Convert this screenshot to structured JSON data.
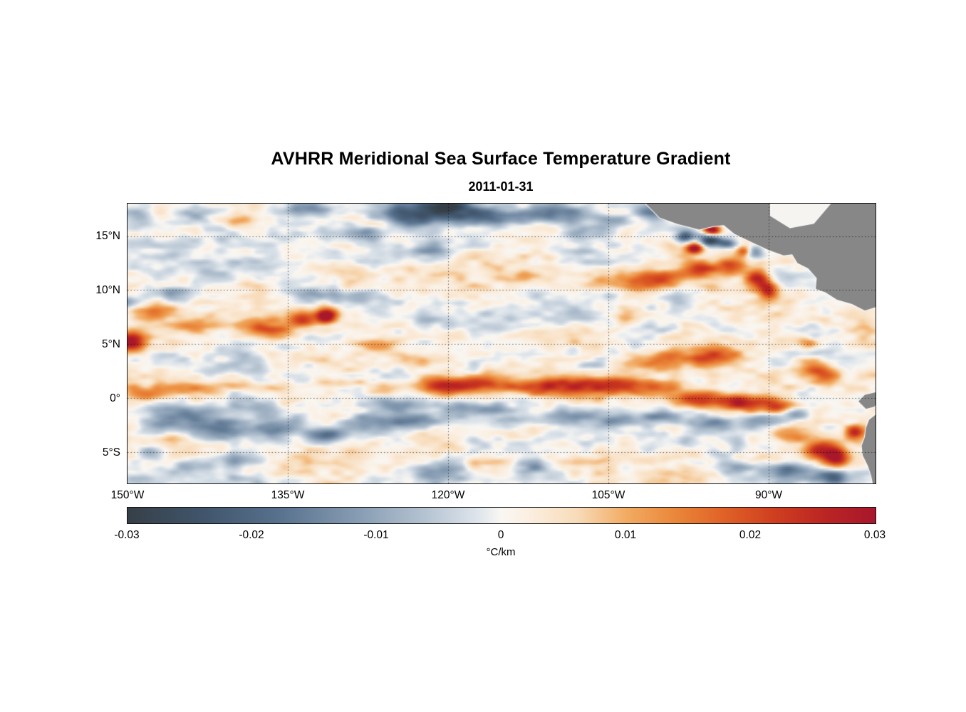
{
  "figure": {
    "title": "AVHRR Meridional Sea Surface Temperature Gradient",
    "subtitle": "2011-01-31"
  },
  "chart_data": {
    "type": "heatmap",
    "title": "AVHRR Meridional Sea Surface Temperature Gradient",
    "subtitle": "2011-01-31",
    "x_axis": {
      "tick_labels": [
        "150°W",
        "135°W",
        "120°W",
        "105°W",
        "90°W"
      ],
      "tick_lon_west": [
        150,
        135,
        120,
        105,
        90
      ],
      "range_lon_west": [
        150,
        80
      ]
    },
    "y_axis": {
      "tick_labels": [
        "15°N",
        "10°N",
        "5°N",
        "0°",
        "5°S"
      ],
      "tick_lat": [
        15,
        10,
        5,
        0,
        -5
      ],
      "range_lat": [
        -7.9,
        18
      ]
    },
    "grid": {
      "style": "dotted",
      "color": "rgba(0,0,0,0.6)",
      "lat_lines": [
        15,
        10,
        5,
        0,
        -5
      ],
      "lon_west_lines": [
        135,
        120,
        105,
        90
      ]
    },
    "colorbar": {
      "min": -0.03,
      "max": 0.03,
      "tick_values": [
        -0.03,
        -0.02,
        -0.01,
        0,
        0.01,
        0.02,
        0.03
      ],
      "tick_labels": [
        "-0.03",
        "-0.02",
        "-0.01",
        "0",
        "0.01",
        "0.02",
        "0.03"
      ],
      "units": "°C/km",
      "stops": [
        {
          "v": -0.03,
          "c": "#363f47"
        },
        {
          "v": -0.024,
          "c": "#40556b"
        },
        {
          "v": -0.018,
          "c": "#57708c"
        },
        {
          "v": -0.012,
          "c": "#8399b0"
        },
        {
          "v": -0.006,
          "c": "#b6c4d2"
        },
        {
          "v": -0.002,
          "c": "#dde4eb"
        },
        {
          "v": 0.0,
          "c": "#f9f7f3"
        },
        {
          "v": 0.002,
          "c": "#fbf0e3"
        },
        {
          "v": 0.006,
          "c": "#f8dcba"
        },
        {
          "v": 0.01,
          "c": "#f2ab63"
        },
        {
          "v": 0.014,
          "c": "#ea8639"
        },
        {
          "v": 0.018,
          "c": "#df6026"
        },
        {
          "v": 0.022,
          "c": "#cf3d20"
        },
        {
          "v": 0.026,
          "c": "#ba2523"
        },
        {
          "v": 0.03,
          "c": "#a8172c"
        }
      ]
    },
    "land": {
      "fill_color": "#878787",
      "coastline_color": "#ffffff",
      "masked_sea_color": "#f6f4f0",
      "polygons": [
        [
          [
            101.8,
            18.3
          ],
          [
            100.2,
            16.7
          ],
          [
            98.5,
            16.1
          ],
          [
            96.5,
            15.6
          ],
          [
            95.2,
            15.9
          ],
          [
            94.2,
            16.0
          ],
          [
            93.2,
            15.2
          ],
          [
            91.5,
            14.4
          ],
          [
            90.0,
            13.7
          ],
          [
            88.6,
            13.2
          ],
          [
            87.8,
            13.3
          ],
          [
            87.3,
            12.5
          ],
          [
            86.3,
            12.0
          ],
          [
            85.5,
            11.1
          ],
          [
            85.6,
            10.1
          ],
          [
            84.7,
            9.8
          ],
          [
            83.6,
            9.1
          ],
          [
            82.2,
            8.7
          ],
          [
            81.0,
            8.1
          ],
          [
            79.7,
            8.5
          ],
          [
            79.7,
            18.3
          ]
        ],
        [
          [
            79.7,
            -1.3
          ],
          [
            80.6,
            -2.0
          ],
          [
            80.9,
            -2.8
          ],
          [
            81.0,
            -3.6
          ],
          [
            81.3,
            -4.4
          ],
          [
            81.2,
            -5.3
          ],
          [
            80.7,
            -6.3
          ],
          [
            80.4,
            -7.2
          ],
          [
            80.2,
            -8.2
          ],
          [
            79.7,
            -8.2
          ]
        ],
        [
          [
            79.7,
            0.6
          ],
          [
            81.0,
            0.3
          ],
          [
            81.6,
            -0.3
          ],
          [
            80.9,
            -1.0
          ],
          [
            80.1,
            -0.8
          ],
          [
            79.7,
            -0.2
          ]
        ]
      ],
      "masked_polygons": [
        [
          [
            89.8,
            18.3
          ],
          [
            84.0,
            18.3
          ],
          [
            85.8,
            16.2
          ],
          [
            88.0,
            15.8
          ],
          [
            89.8,
            16.9
          ]
        ]
      ]
    },
    "field": {
      "seed": 7,
      "bias": 0.0012,
      "noise_amp_large": 0.0085,
      "noise_amp_mid": 0.004,
      "noise_amp_fine": 0.003,
      "clip": 0.0305,
      "features": [
        [
          149.6,
          5.1,
          1.4,
          0.9,
          0.03
        ],
        [
          148.0,
          7.9,
          2.2,
          0.8,
          0.016
        ],
        [
          144.5,
          6.6,
          2.6,
          0.7,
          0.01
        ],
        [
          137.0,
          6.4,
          2.6,
          0.9,
          0.018
        ],
        [
          133.6,
          7.3,
          1.4,
          0.8,
          0.02
        ],
        [
          131.4,
          7.6,
          0.9,
          0.7,
          0.03
        ],
        [
          127.0,
          4.9,
          2.2,
          0.6,
          0.011
        ],
        [
          122.5,
          3.6,
          3.2,
          0.7,
          0.009
        ],
        [
          120.4,
          1.1,
          2.4,
          0.9,
          0.026
        ],
        [
          116.0,
          1.3,
          2.6,
          0.8,
          0.016
        ],
        [
          112.0,
          0.9,
          2.6,
          0.8,
          0.019
        ],
        [
          108.0,
          1.3,
          3.0,
          0.9,
          0.022
        ],
        [
          104.0,
          1.1,
          2.6,
          0.9,
          0.017
        ],
        [
          100.0,
          0.9,
          2.2,
          0.8,
          0.015
        ],
        [
          96.0,
          -0.2,
          2.4,
          0.8,
          0.024
        ],
        [
          92.4,
          -0.4,
          2.0,
          0.8,
          0.026
        ],
        [
          89.0,
          -0.7,
          1.8,
          0.7,
          0.018
        ],
        [
          101.0,
          3.3,
          3.0,
          1.0,
          0.013
        ],
        [
          97.0,
          3.9,
          2.6,
          1.0,
          0.012
        ],
        [
          94.0,
          4.1,
          2.2,
          0.9,
          0.011
        ],
        [
          103.0,
          10.4,
          2.4,
          0.9,
          0.015
        ],
        [
          99.6,
          11.1,
          2.0,
          0.8,
          0.019
        ],
        [
          96.6,
          11.9,
          1.6,
          0.8,
          0.021
        ],
        [
          93.6,
          12.1,
          1.6,
          0.8,
          0.017
        ],
        [
          91.0,
          11.1,
          1.1,
          0.9,
          0.026
        ],
        [
          90.0,
          9.9,
          0.9,
          0.9,
          0.021
        ],
        [
          95.3,
          15.6,
          0.8,
          0.45,
          0.032
        ],
        [
          96.9,
          13.9,
          0.9,
          0.55,
          0.034
        ],
        [
          92.3,
          13.6,
          0.7,
          0.5,
          0.019
        ],
        [
          85.0,
          -4.8,
          1.6,
          1.0,
          0.027
        ],
        [
          88.0,
          -3.4,
          1.6,
          0.8,
          0.015
        ],
        [
          83.6,
          -5.6,
          1.1,
          0.9,
          0.03
        ],
        [
          86.0,
          2.9,
          1.6,
          0.9,
          0.013
        ],
        [
          84.6,
          2.1,
          1.3,
          0.9,
          0.015
        ],
        [
          86.4,
          5.0,
          1.0,
          0.7,
          0.012
        ],
        [
          82.0,
          -3.2,
          0.9,
          0.7,
          0.02
        ],
        [
          140.0,
          16.4,
          3.2,
          0.7,
          0.007
        ],
        [
          126.6,
          16.1,
          1.7,
          0.55,
          0.009
        ],
        [
          148.2,
          0.4,
          2.2,
          0.7,
          0.013
        ],
        [
          144.0,
          0.9,
          2.6,
          0.7,
          0.011
        ],
        [
          140.0,
          1.3,
          2.2,
          0.6,
          0.009
        ],
        [
          135.8,
          0.9,
          2.0,
          0.6,
          0.008
        ],
        [
          131.0,
          1.4,
          2.6,
          0.6,
          0.011
        ],
        [
          126.0,
          1.1,
          2.2,
          0.6,
          0.011
        ],
        [
          150.0,
          8.9,
          1.6,
          0.6,
          -0.015
        ],
        [
          146.8,
          9.7,
          1.6,
          0.6,
          -0.011
        ],
        [
          143.0,
          11.6,
          2.6,
          0.9,
          -0.011
        ],
        [
          138.0,
          12.6,
          2.6,
          0.9,
          -0.009
        ],
        [
          133.0,
          9.6,
          2.2,
          0.7,
          -0.011
        ],
        [
          128.4,
          9.4,
          2.0,
          0.6,
          -0.013
        ],
        [
          124.0,
          16.9,
          3.2,
          1.1,
          -0.022
        ],
        [
          120.0,
          17.6,
          2.6,
          1.1,
          -0.024
        ],
        [
          116.4,
          16.6,
          2.2,
          0.9,
          -0.016
        ],
        [
          127.6,
          15.3,
          1.6,
          0.7,
          -0.014
        ],
        [
          133.2,
          17.6,
          2.2,
          0.7,
          -0.012
        ],
        [
          109.0,
          17.1,
          2.6,
          0.9,
          -0.018
        ],
        [
          113.0,
          16.9,
          2.0,
          0.8,
          -0.012
        ],
        [
          104.4,
          16.3,
          1.6,
          0.7,
          -0.011
        ],
        [
          100.6,
          17.2,
          1.6,
          0.7,
          -0.014
        ],
        [
          95.6,
          14.6,
          1.1,
          0.55,
          -0.028
        ],
        [
          97.9,
          14.9,
          0.9,
          0.55,
          -0.022
        ],
        [
          93.9,
          14.3,
          0.9,
          0.45,
          -0.018
        ],
        [
          91.4,
          13.6,
          0.9,
          0.55,
          -0.02
        ],
        [
          104.6,
          9.8,
          1.3,
          0.6,
          -0.01
        ],
        [
          146.0,
          -2.4,
          2.6,
          0.9,
          -0.016
        ],
        [
          141.0,
          -3.1,
          2.6,
          0.9,
          -0.018
        ],
        [
          136.0,
          -2.7,
          2.2,
          0.8,
          -0.014
        ],
        [
          131.4,
          -3.5,
          2.2,
          0.8,
          -0.02
        ],
        [
          127.0,
          -2.1,
          2.6,
          0.9,
          -0.016
        ],
        [
          122.6,
          -1.9,
          2.2,
          0.7,
          -0.012
        ],
        [
          117.0,
          -1.1,
          2.6,
          0.7,
          -0.014
        ],
        [
          113.4,
          -1.9,
          2.2,
          0.6,
          -0.012
        ],
        [
          108.4,
          -1.4,
          2.2,
          0.7,
          -0.011
        ],
        [
          104.4,
          -2.1,
          2.6,
          0.8,
          -0.013
        ],
        [
          99.6,
          -1.7,
          2.2,
          0.7,
          -0.016
        ],
        [
          96.0,
          -2.4,
          2.0,
          0.7,
          -0.014
        ],
        [
          90.4,
          -2.2,
          1.6,
          0.7,
          -0.016
        ],
        [
          87.4,
          -1.4,
          1.3,
          0.6,
          -0.018
        ],
        [
          88.4,
          -6.7,
          2.2,
          0.8,
          -0.022
        ],
        [
          84.0,
          -7.4,
          1.6,
          0.7,
          -0.024
        ],
        [
          93.0,
          -6.4,
          2.2,
          0.7,
          -0.011
        ],
        [
          148.0,
          -5.1,
          1.6,
          0.7,
          -0.013
        ],
        [
          144.4,
          -6.4,
          2.2,
          0.7,
          -0.011
        ],
        [
          140.0,
          -5.7,
          2.2,
          0.6,
          -0.009
        ],
        [
          120.0,
          -6.8,
          2.6,
          0.8,
          -0.011
        ],
        [
          112.0,
          -6.4,
          2.2,
          0.7,
          -0.009
        ],
        [
          147.0,
          -0.9,
          2.2,
          0.8,
          -0.013
        ],
        [
          143.0,
          -1.6,
          2.6,
          0.9,
          -0.015
        ],
        [
          138.0,
          -1.1,
          2.2,
          0.8,
          -0.011
        ],
        [
          125.0,
          -0.6,
          2.2,
          0.6,
          -0.013
        ],
        [
          149.0,
          17.1,
          1.7,
          0.9,
          -0.011
        ],
        [
          121.5,
          13.6,
          2.2,
          0.7,
          -0.007
        ],
        [
          102.0,
          6.6,
          2.6,
          0.9,
          -0.005
        ],
        [
          143.5,
          16.9,
          2.0,
          0.7,
          -0.008
        ]
      ]
    }
  }
}
